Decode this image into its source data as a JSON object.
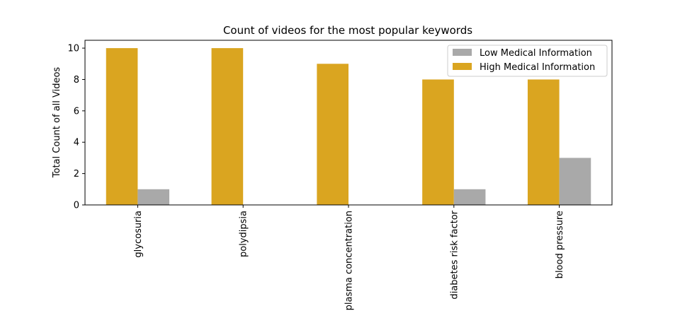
{
  "chart_data": {
    "type": "bar",
    "title": "Count of videos for the most popular keywords",
    "xlabel": "",
    "ylabel": "Total Count of all Videos",
    "categories": [
      "glycosuria",
      "polydipsia",
      "plasma concentration",
      "diabetes risk factor",
      "blood pressure"
    ],
    "series": [
      {
        "name": "High Medical Information",
        "color": "#daa520",
        "values": [
          10,
          10,
          9,
          8,
          8
        ]
      },
      {
        "name": "Low Medical Information",
        "color": "#a9a9a9",
        "values": [
          1,
          0,
          0,
          1,
          3
        ]
      }
    ],
    "legend_order": [
      1,
      0
    ],
    "ylim": [
      0,
      10.5
    ],
    "yticks": [
      0,
      2,
      4,
      6,
      8,
      10
    ],
    "grid": false,
    "legend_position": "top-right"
  }
}
